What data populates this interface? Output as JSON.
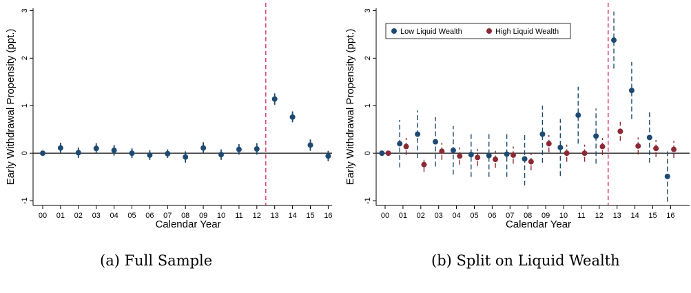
{
  "colors": {
    "low": "#1e4a72",
    "high": "#8b2a35",
    "vline": "#e0457b",
    "axis": "#000000",
    "zero": "#222222"
  },
  "chart_data": [
    {
      "type": "scatter",
      "title": "",
      "xlabel": "Calendar Year",
      "ylabel": "Early Withdrawal Propensity (ppt.)",
      "caption": "(a) Full Sample",
      "categories": [
        "00",
        "01",
        "02",
        "03",
        "04",
        "05",
        "06",
        "07",
        "08",
        "09",
        "10",
        "11",
        "12",
        "13",
        "14",
        "15",
        "16"
      ],
      "yticks": [
        "-1",
        "0",
        "1",
        "2",
        "3"
      ],
      "ylim": [
        -1.1,
        3.05
      ],
      "vline_x": 12.5,
      "hline_y": 0,
      "grid": false,
      "legend": null,
      "series": [
        {
          "color": "#1e4a72",
          "offset": 0,
          "values": [
            0.0,
            0.11,
            0.01,
            0.1,
            0.06,
            0.0,
            -0.04,
            -0.01,
            -0.08,
            0.11,
            -0.03,
            0.08,
            0.09,
            1.14,
            0.76,
            0.17,
            -0.06
          ],
          "lower": [
            -0.02,
            0.0,
            -0.1,
            -0.01,
            -0.05,
            -0.1,
            -0.14,
            -0.1,
            -0.2,
            0.0,
            -0.14,
            -0.03,
            -0.03,
            1.02,
            0.65,
            0.05,
            -0.17
          ],
          "upper": [
            0.02,
            0.22,
            0.12,
            0.21,
            0.17,
            0.1,
            0.06,
            0.08,
            0.04,
            0.23,
            0.08,
            0.19,
            0.21,
            1.26,
            0.88,
            0.29,
            0.05
          ]
        }
      ]
    },
    {
      "type": "scatter",
      "title": "",
      "xlabel": "Calendar Year",
      "ylabel": "Early Withdrawal Propensity (ppt.)",
      "caption": "(b) Split on Liquid Wealth",
      "categories": [
        "00",
        "01",
        "02",
        "03",
        "04",
        "05",
        "06",
        "07",
        "08",
        "09",
        "10",
        "11",
        "12",
        "13",
        "14",
        "15",
        "16"
      ],
      "yticks": [
        "-1",
        "0",
        "1",
        "2",
        "3"
      ],
      "ylim": [
        -1.1,
        3.05
      ],
      "vline_x": 12.5,
      "hline_y": 0,
      "grid": false,
      "legend": {
        "position": "top-left",
        "entries": [
          "Low Liquid Wealth",
          "High Liquid Wealth"
        ]
      },
      "series": [
        {
          "name": "Low Liquid Wealth",
          "color": "#1e4a72",
          "offset": -0.18,
          "dashed_ci": true,
          "values": [
            0.0,
            0.2,
            0.4,
            0.24,
            0.06,
            -0.03,
            -0.05,
            -0.02,
            -0.12,
            0.4,
            0.12,
            0.8,
            0.36,
            2.38,
            1.32,
            0.33,
            -0.49
          ],
          "lower": [
            -0.02,
            -0.3,
            -0.1,
            -0.28,
            -0.45,
            -0.5,
            -0.5,
            -0.5,
            -0.68,
            -0.2,
            -0.48,
            0.2,
            -0.22,
            1.78,
            0.72,
            -0.2,
            -1.02
          ],
          "upper": [
            0.02,
            0.7,
            0.9,
            0.76,
            0.57,
            0.44,
            0.4,
            0.46,
            0.44,
            1.0,
            0.72,
            1.4,
            0.94,
            2.98,
            1.92,
            0.86,
            0.04
          ]
        },
        {
          "name": "High Liquid Wealth",
          "color": "#8b2a35",
          "offset": 0.18,
          "dashed_ci": true,
          "values": [
            0.0,
            0.14,
            -0.24,
            0.04,
            -0.06,
            -0.09,
            -0.13,
            -0.04,
            -0.18,
            0.2,
            0.0,
            0.0,
            0.14,
            0.46,
            0.15,
            0.1,
            0.08
          ],
          "lower": [
            -0.02,
            -0.04,
            -0.4,
            -0.14,
            -0.24,
            -0.27,
            -0.31,
            -0.22,
            -0.36,
            0.02,
            -0.18,
            -0.18,
            -0.04,
            0.26,
            -0.03,
            -0.08,
            -0.1
          ],
          "upper": [
            0.02,
            0.32,
            -0.08,
            0.22,
            0.12,
            0.09,
            0.05,
            0.14,
            0.0,
            0.38,
            0.18,
            0.18,
            0.32,
            0.66,
            0.33,
            0.28,
            0.26
          ]
        }
      ]
    }
  ]
}
